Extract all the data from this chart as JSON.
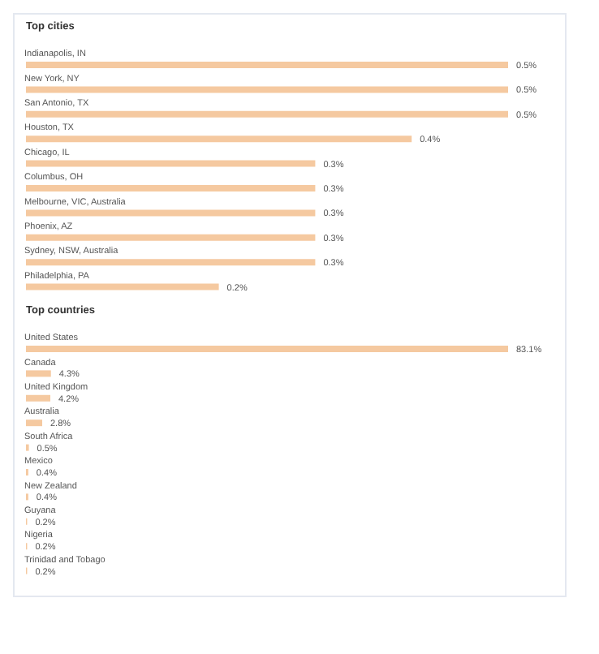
{
  "chart_data": [
    {
      "type": "bar",
      "orientation": "horizontal",
      "title": "Top cities",
      "categories": [
        "Indianapolis, IN",
        "New York, NY",
        "San Antonio, TX",
        "Houston, TX",
        "Chicago, IL",
        "Columbus, OH",
        "Melbourne, VIC, Australia",
        "Phoenix, AZ",
        "Sydney, NSW, Australia",
        "Philadelphia, PA"
      ],
      "values": [
        0.5,
        0.5,
        0.5,
        0.4,
        0.3,
        0.3,
        0.3,
        0.3,
        0.3,
        0.2
      ],
      "value_labels": [
        "0.5%",
        "0.5%",
        "0.5%",
        "0.4%",
        "0.3%",
        "0.3%",
        "0.3%",
        "0.3%",
        "0.3%",
        "0.2%"
      ],
      "color": "#f5c9a0"
    },
    {
      "type": "bar",
      "orientation": "horizontal",
      "title": "Top countries",
      "categories": [
        "United States",
        "Canada",
        "United Kingdom",
        "Australia",
        "South Africa",
        "Mexico",
        "New Zealand",
        "Guyana",
        "Nigeria",
        "Trinidad and Tobago"
      ],
      "values": [
        83.1,
        4.3,
        4.2,
        2.8,
        0.5,
        0.4,
        0.4,
        0.2,
        0.2,
        0.2
      ],
      "value_labels": [
        "83.1%",
        "4.3%",
        "4.2%",
        "2.8%",
        "0.5%",
        "0.4%",
        "0.4%",
        "0.2%",
        "0.2%",
        "0.2%"
      ],
      "color": "#f5c9a0"
    }
  ]
}
